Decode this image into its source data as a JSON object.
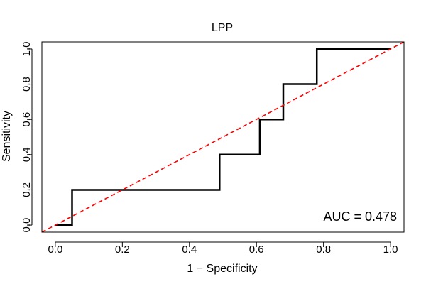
{
  "chart_data": {
    "type": "line",
    "title": "LPP",
    "xlabel": "1 − Specificity",
    "ylabel": "Sensitivity",
    "xlim": [
      -0.04,
      1.04
    ],
    "ylim": [
      -0.04,
      1.04
    ],
    "xticks": [
      0.0,
      0.2,
      0.4,
      0.6,
      0.8,
      1.0
    ],
    "yticks": [
      0.0,
      0.2,
      0.4,
      0.6,
      0.8,
      1.0
    ],
    "xtick_labels": [
      "0.0",
      "0.2",
      "0.4",
      "0.6",
      "0.8",
      "1.0"
    ],
    "ytick_labels": [
      "0.0",
      "0.2",
      "0.4",
      "0.6",
      "0.8",
      "1.0"
    ],
    "grid": false,
    "series": [
      {
        "color": "#000000",
        "line_style": "solid",
        "x": [
          0.0,
          0.05,
          0.05,
          0.49,
          0.49,
          0.61,
          0.61,
          0.68,
          0.68,
          0.78,
          0.78,
          1.0
        ],
        "y": [
          0.0,
          0.0,
          0.2,
          0.2,
          0.4,
          0.4,
          0.6,
          0.6,
          0.8,
          0.8,
          1.0,
          1.0
        ]
      },
      {
        "color": "#ff0000",
        "line_style": "dashed",
        "x": [
          -0.04,
          1.04
        ],
        "y": [
          -0.04,
          1.04
        ]
      }
    ],
    "annotations": [
      {
        "text": "AUC = 0.478"
      }
    ]
  }
}
